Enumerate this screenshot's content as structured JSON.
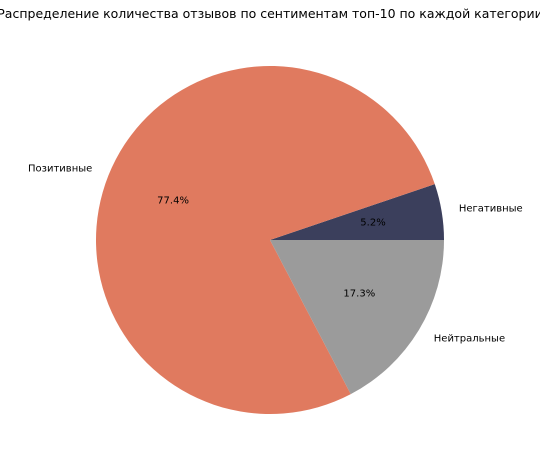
{
  "chart_data": {
    "type": "pie",
    "title": "Распределение количества отзывов по сентиментам топ-10 по каждой категории",
    "slices": [
      {
        "label": "Негативные",
        "percent": 5.2,
        "percent_label": "5.2%",
        "color": "#3b3f5c"
      },
      {
        "label": "Позитивные",
        "percent": 77.4,
        "percent_label": "77.4%",
        "color": "#e07a5f"
      },
      {
        "label": "Нейтральные",
        "percent": 17.3,
        "percent_label": "17.3%",
        "color": "#9b9b9b"
      }
    ],
    "start_angle_deg": 0,
    "direction": "counterclockwise"
  }
}
